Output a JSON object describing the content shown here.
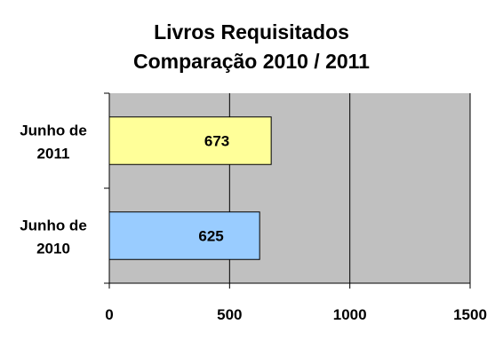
{
  "chart_data": {
    "type": "bar",
    "orientation": "horizontal",
    "title": [
      "Livros Requisitados",
      "Comparação 2010 / 2011"
    ],
    "categories": [
      {
        "lines": [
          "Junho de",
          "2011"
        ],
        "value": 673,
        "color": "#ffff99"
      },
      {
        "lines": [
          "Junho de",
          "2010"
        ],
        "value": 625,
        "color": "#99ccff"
      }
    ],
    "xlim": [
      0,
      1500
    ],
    "xticks": [
      0,
      500,
      1000,
      1500
    ],
    "tick_labels": [
      "0",
      "500",
      "1000",
      "1500"
    ],
    "grid": true,
    "plot_background": "#c0c0c0",
    "legend": "none"
  }
}
